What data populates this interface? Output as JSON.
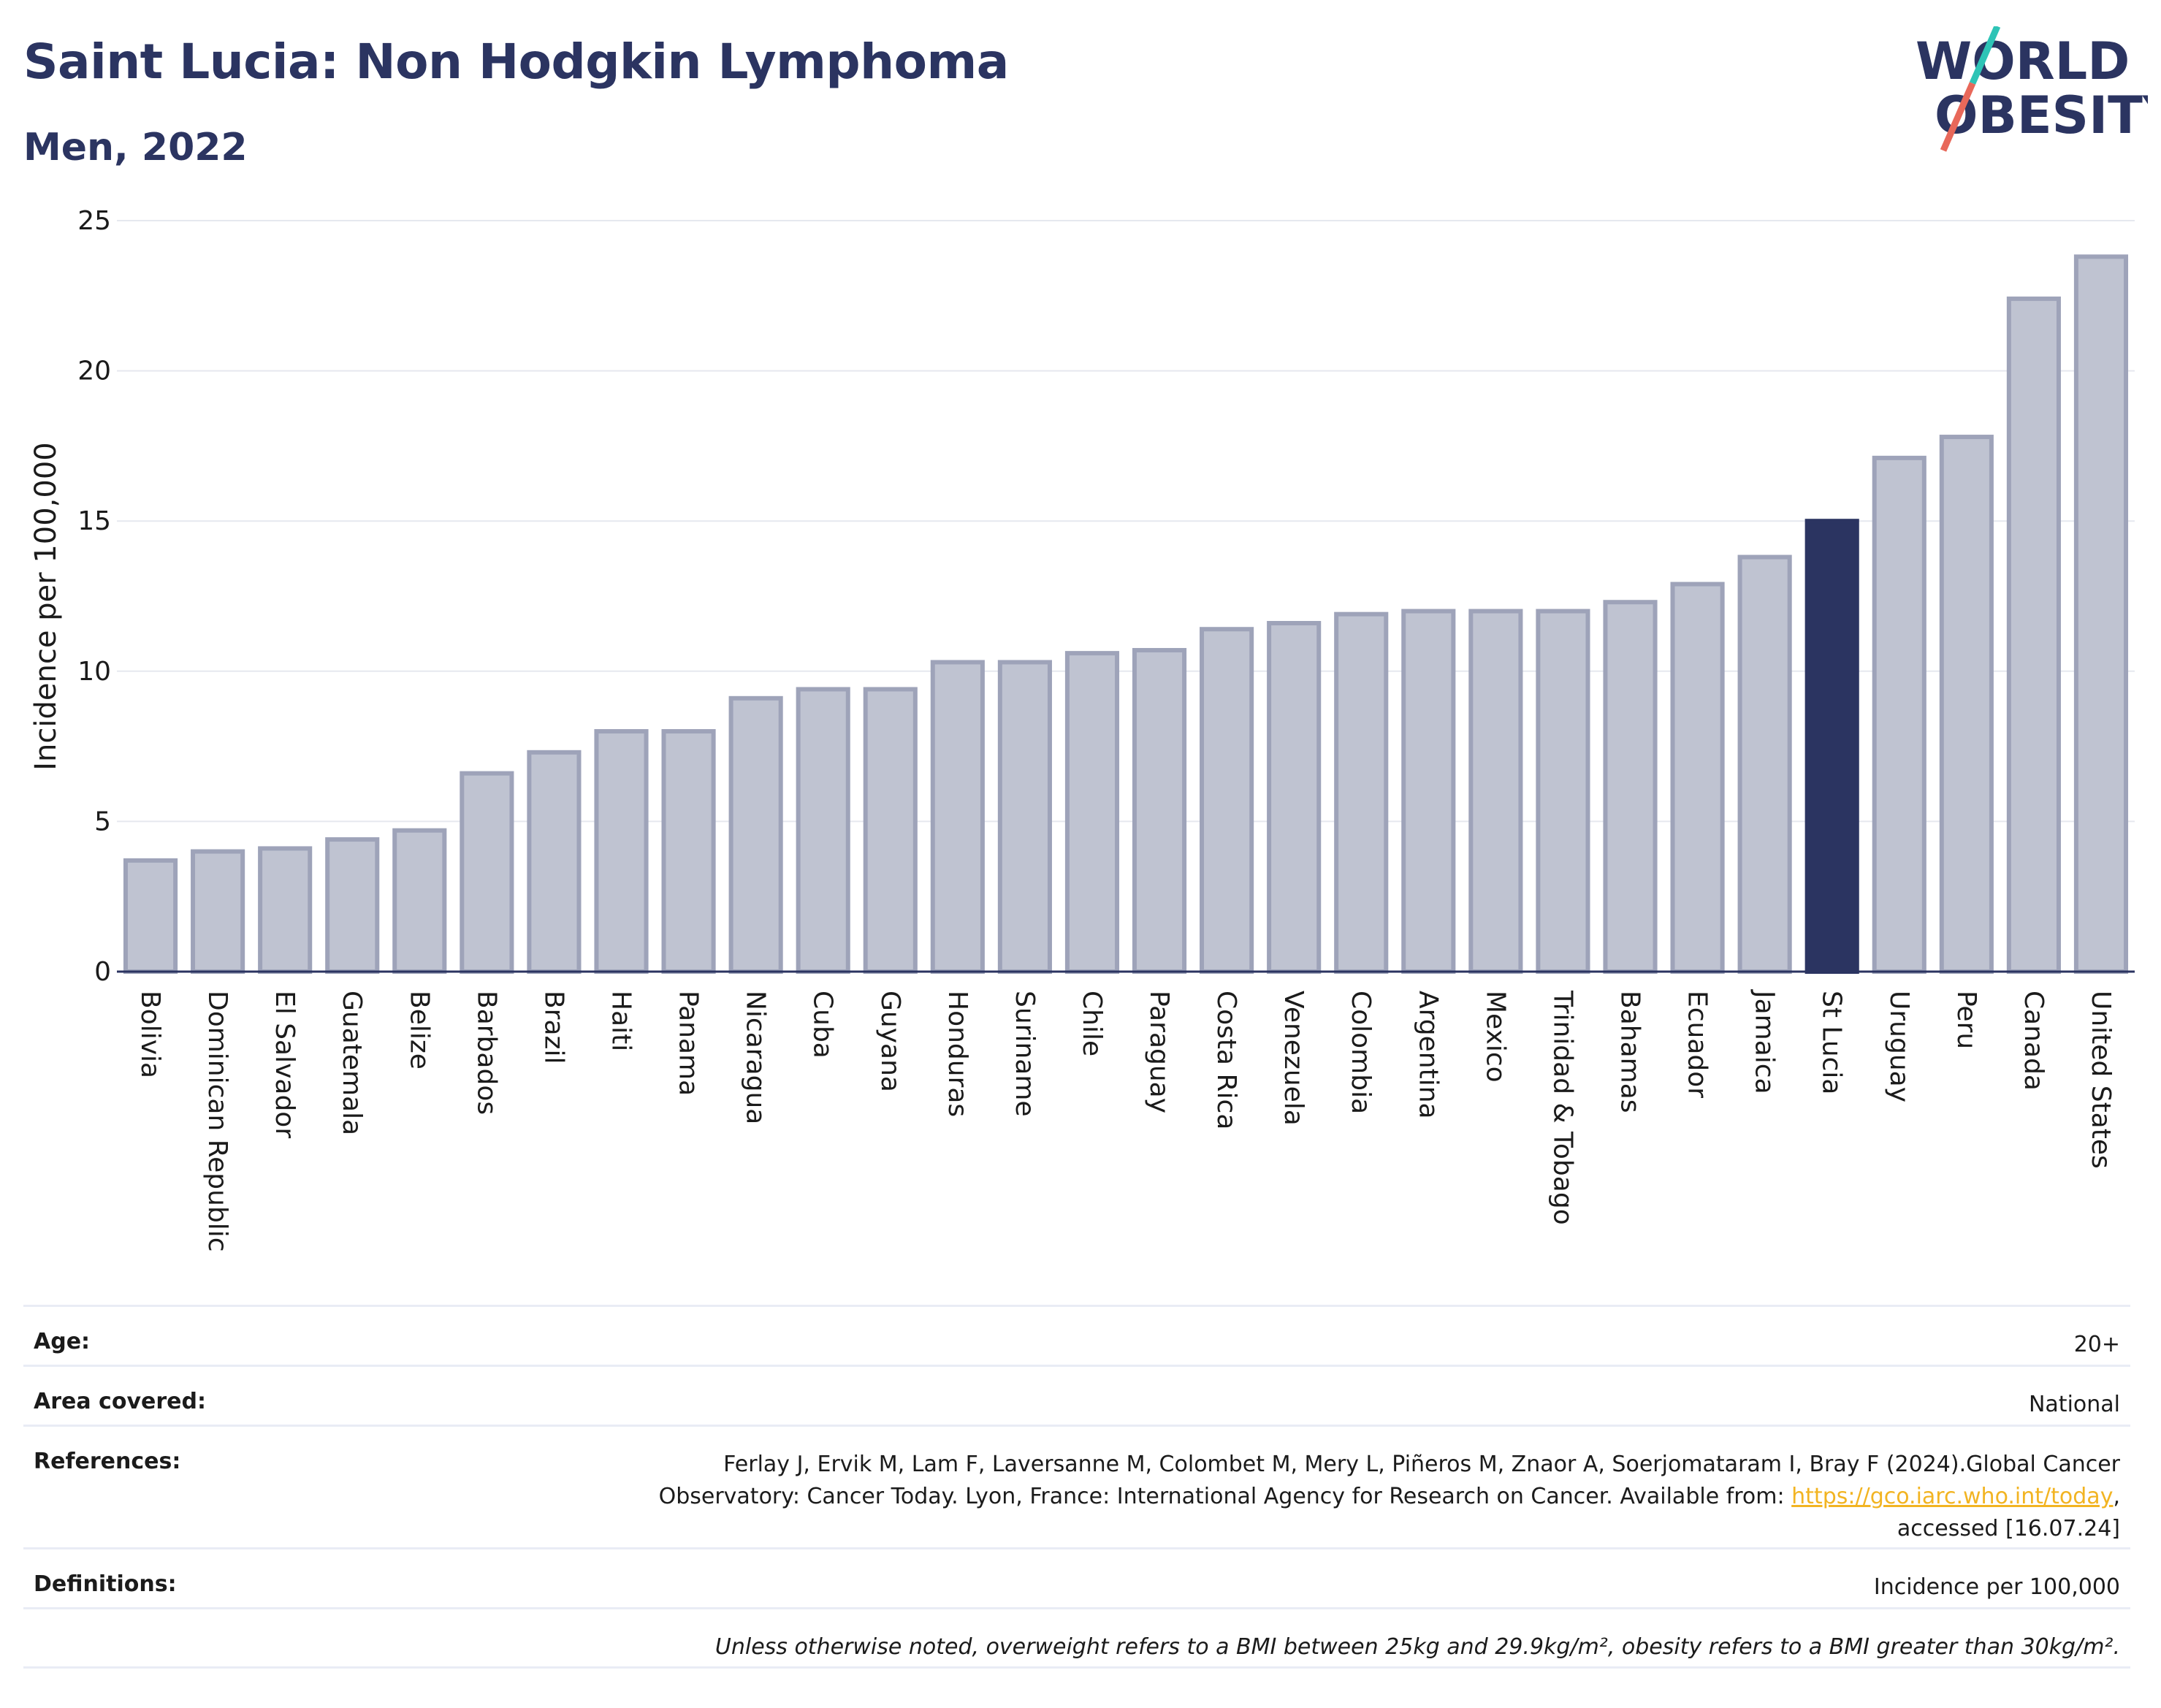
{
  "header": {
    "title": "Saint Lucia: Non Hodgkin Lymphoma",
    "subtitle": "Men, 2022"
  },
  "logo": {
    "line1": "WORLD",
    "line2": "OBESITY",
    "accent_colors": [
      "#2ec4b6",
      "#e8685a"
    ]
  },
  "colors": {
    "bar": "#bfc3d1",
    "bar_border": "#9ea3b9",
    "highlight": "#2b3461",
    "title": "#2b3461"
  },
  "chart_data": {
    "type": "bar",
    "title": "Saint Lucia: Non Hodgkin Lymphoma",
    "subtitle": "Men, 2022",
    "xlabel": "",
    "ylabel": "Incidence per 100,000",
    "ylim": [
      0,
      25
    ],
    "yticks": [
      0,
      5,
      10,
      15,
      20,
      25
    ],
    "grid": true,
    "highlight": "St Lucia",
    "categories": [
      "Bolivia",
      "Dominican Republic",
      "El Salvador",
      "Guatemala",
      "Belize",
      "Barbados",
      "Brazil",
      "Haiti",
      "Panama",
      "Nicaragua",
      "Cuba",
      "Guyana",
      "Honduras",
      "Suriname",
      "Chile",
      "Paraguay",
      "Costa Rica",
      "Venezuela",
      "Colombia",
      "Argentina",
      "Mexico",
      "Trinidad & Tobago",
      "Bahamas",
      "Ecuador",
      "Jamaica",
      "St Lucia",
      "Uruguay",
      "Peru",
      "Canada",
      "United States"
    ],
    "values": [
      3.7,
      4.0,
      4.1,
      4.4,
      4.7,
      6.6,
      7.3,
      8.0,
      8.0,
      9.1,
      9.4,
      9.4,
      10.3,
      10.3,
      10.6,
      10.7,
      11.4,
      11.6,
      11.9,
      12.0,
      12.0,
      12.0,
      12.3,
      12.9,
      13.8,
      15.0,
      17.1,
      17.8,
      22.4,
      23.8
    ]
  },
  "info": {
    "age_label": "Age:",
    "age_value": "20+",
    "area_label": "Area covered:",
    "area_value": "National",
    "ref_label": "References:",
    "ref_line1": "Ferlay J, Ervik M, Lam F, Laversanne M, Colombet M, Mery L, Piñeros M, Znaor A, Soerjomataram I, Bray F (2024).Global Cancer",
    "ref_line2_pre": "Observatory: Cancer Today. Lyon, France: International Agency for Research on Cancer. Available from: ",
    "ref_link": "https://gco.iarc.who.int/today",
    "ref_line2_post": ",",
    "ref_line3": "accessed [16.07.24]",
    "def_label": "Definitions:",
    "def_value": "Incidence per 100,000",
    "note": "Unless otherwise noted, overweight refers to a BMI between 25kg and 29.9kg/m², obesity refers to a BMI greater than 30kg/m²."
  }
}
